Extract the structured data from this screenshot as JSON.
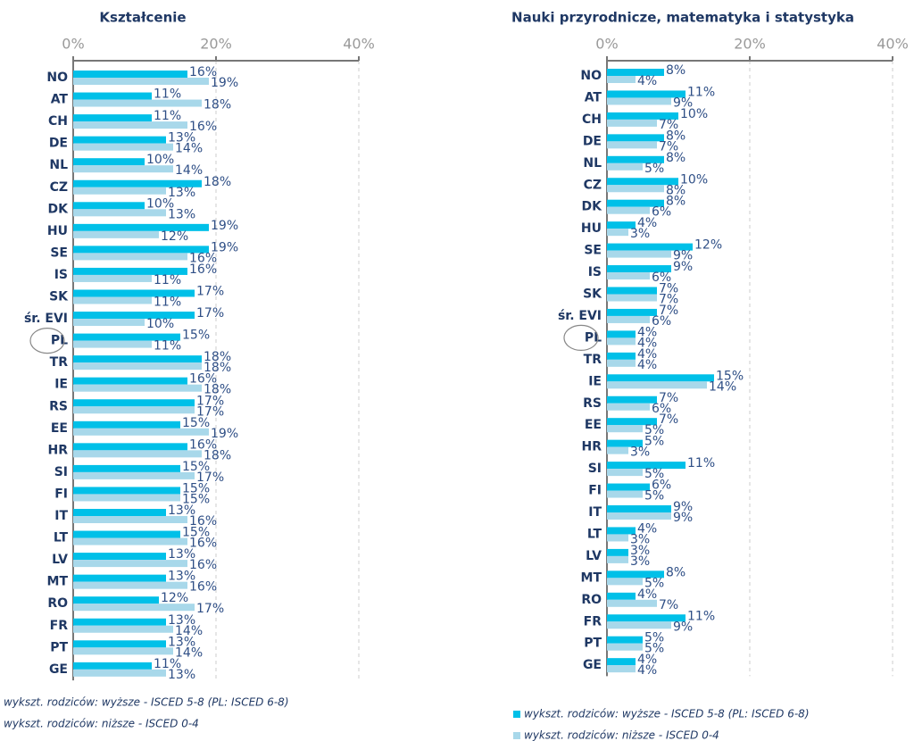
{
  "chart_data": [
    {
      "type": "bar",
      "orientation": "horizontal",
      "title": "Kształcenie",
      "categories": [
        "NO",
        "AT",
        "CH",
        "DE",
        "NL",
        "CZ",
        "DK",
        "HU",
        "SE",
        "IS",
        "SK",
        "śr. EVI",
        "PL",
        "TR",
        "IE",
        "RS",
        "EE",
        "HR",
        "SI",
        "FI",
        "IT",
        "LT",
        "LV",
        "MT",
        "RO",
        "FR",
        "PT",
        "GE"
      ],
      "series": [
        {
          "name": "wykszt. rodziców: wyższe - ISCED 5-8 (PL: ISCED 6-8)",
          "color": "#00c0e8",
          "values": [
            16,
            11,
            11,
            13,
            10,
            18,
            10,
            19,
            19,
            16,
            17,
            17,
            15,
            18,
            16,
            17,
            15,
            16,
            15,
            15,
            13,
            15,
            13,
            13,
            12,
            13,
            13,
            11
          ],
          "value_labels": [
            "16%",
            "11%",
            "11%",
            "13%",
            "10%",
            "18%",
            "10%",
            "19%",
            "19%",
            "16%",
            "17%",
            "17%",
            "15%",
            "18%",
            "16%",
            "17%",
            "15%",
            "16%",
            "15%",
            "15%",
            "13%",
            "15%",
            "13%",
            "13%",
            "12%",
            "13%",
            "13%",
            "11%"
          ]
        },
        {
          "name": "wykszt. rodziców: niższe - ISCED 0-4",
          "color": "#a8d8ea",
          "values": [
            19,
            18,
            16,
            14,
            14,
            13,
            13,
            12,
            16,
            11,
            11,
            10,
            11,
            18,
            18,
            17,
            19,
            18,
            17,
            15,
            16,
            16,
            16,
            16,
            17,
            14,
            14,
            13
          ],
          "value_labels": [
            "19%",
            "18%",
            "16%",
            "14%",
            "14%",
            "13%",
            "13%",
            "12%",
            "16%",
            "11%",
            "11%",
            "10%",
            "11%",
            "18%",
            "18%",
            "17%",
            "19%",
            "18%",
            "17%",
            "15%",
            "16%",
            "16%",
            "16%",
            "16%",
            "17%",
            "14%",
            "14%",
            "13%"
          ]
        }
      ],
      "xlim": [
        0,
        40
      ],
      "xticks": [
        {
          "value": 0,
          "label": "0%"
        },
        {
          "value": 20,
          "label": "20%"
        },
        {
          "value": 40,
          "label": "40%"
        }
      ],
      "grid": true
    },
    {
      "type": "bar",
      "orientation": "horizontal",
      "title": "Nauki przyrodnicze, matematyka i statystyka",
      "categories": [
        "NO",
        "AT",
        "CH",
        "DE",
        "NL",
        "CZ",
        "DK",
        "HU",
        "SE",
        "IS",
        "SK",
        "śr. EVI",
        "PL",
        "TR",
        "IE",
        "RS",
        "EE",
        "HR",
        "SI",
        "FI",
        "IT",
        "LT",
        "LV",
        "MT",
        "RO",
        "FR",
        "PT",
        "GE"
      ],
      "series": [
        {
          "name": "wykszt. rodziców: wyższe - ISCED 5-8 (PL: ISCED 6-8)",
          "color": "#00c0e8",
          "values": [
            8,
            11,
            10,
            8,
            8,
            10,
            8,
            4,
            12,
            9,
            7,
            7,
            4,
            4,
            15,
            7,
            7,
            5,
            11,
            6,
            9,
            4,
            3,
            8,
            4,
            11,
            5,
            4
          ],
          "value_labels": [
            "8%",
            "11%",
            "10%",
            "8%",
            "8%",
            "10%",
            "8%",
            "4%",
            "12%",
            "9%",
            "7%",
            "7%",
            "4%",
            "4%",
            "15%",
            "7%",
            "7%",
            "5%",
            "11%",
            "6%",
            "9%",
            "4%",
            "3%",
            "8%",
            "4%",
            "11%",
            "5%",
            "4%"
          ]
        },
        {
          "name": "wykszt. rodziców: niższe - ISCED 0-4",
          "color": "#a8d8ea",
          "values": [
            4,
            9,
            7,
            7,
            5,
            8,
            6,
            3,
            9,
            6,
            7,
            6,
            4,
            4,
            14,
            6,
            5,
            3,
            5,
            5,
            9,
            3,
            3,
            5,
            7,
            9,
            5,
            4
          ],
          "value_labels": [
            "4%",
            "9%",
            "7%",
            "7%",
            "5%",
            "8%",
            "6%",
            "3%",
            "9%",
            "6%",
            "7%",
            "6%",
            "4%",
            "4%",
            "14%",
            "6%",
            "5%",
            "3%",
            "5%",
            "5%",
            "9%",
            "3%",
            "3%",
            "5%",
            "7%",
            "9%",
            "5%",
            "4%"
          ]
        }
      ],
      "xlim": [
        0,
        40
      ],
      "xticks": [
        {
          "value": 0,
          "label": "0%"
        },
        {
          "value": 20,
          "label": "20%"
        },
        {
          "value": 40,
          "label": "40%"
        }
      ],
      "grid": true
    }
  ]
}
